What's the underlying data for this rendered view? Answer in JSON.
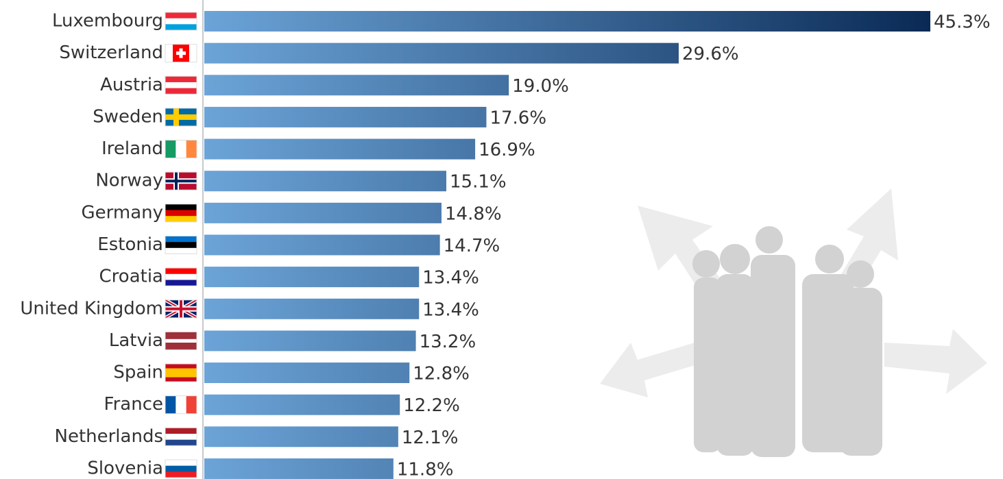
{
  "chart_data": {
    "type": "bar",
    "orientation": "horizontal",
    "categories": [
      "Luxembourg",
      "Switzerland",
      "Austria",
      "Sweden",
      "Ireland",
      "Norway",
      "Germany",
      "Estonia",
      "Croatia",
      "United Kingdom",
      "Latvia",
      "Spain",
      "France",
      "Netherlands",
      "Slovenia"
    ],
    "values": [
      45.3,
      29.6,
      19.0,
      17.6,
      16.9,
      15.1,
      14.8,
      14.7,
      13.4,
      13.4,
      13.2,
      12.8,
      12.2,
      12.1,
      11.8
    ],
    "value_labels": [
      "45.3%",
      "29.6%",
      "19.0%",
      "17.6%",
      "16.9%",
      "15.1%",
      "14.8%",
      "14.7%",
      "13.4%",
      "13.4%",
      "13.2%",
      "12.8%",
      "12.2%",
      "12.1%",
      "11.8%"
    ],
    "color": [
      "#6ca4d8",
      "#0a2a55"
    ]
  }
}
